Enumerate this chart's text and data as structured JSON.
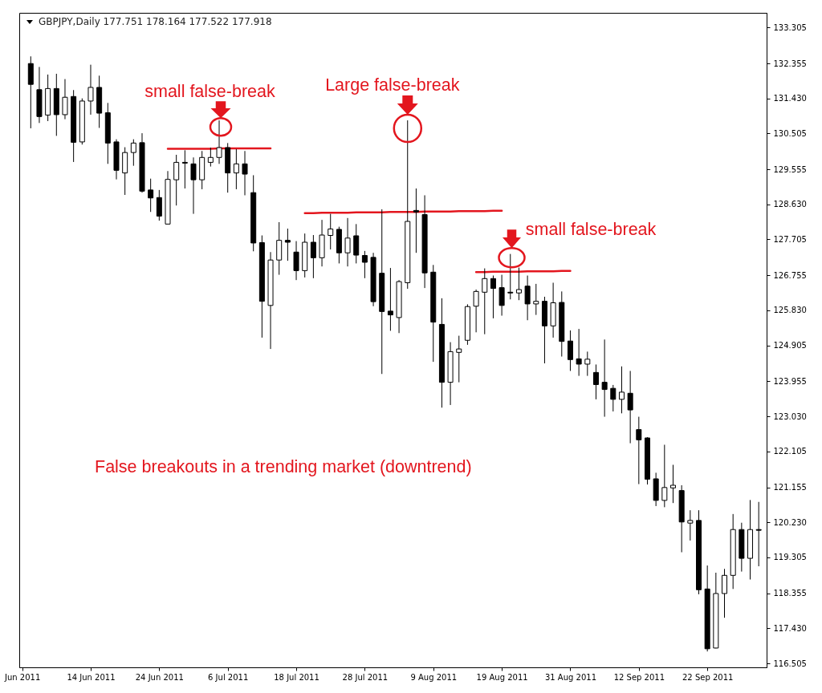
{
  "chart_data": {
    "type": "candlestick",
    "title": "GBPJPY,Daily 177.751 178.164 177.522 177.918",
    "categories": [
      "Jun 2011",
      null,
      null,
      null,
      null,
      null,
      null,
      null,
      "14 Jun 2011",
      null,
      null,
      null,
      null,
      null,
      null,
      null,
      "24 Jun 2011",
      null,
      null,
      null,
      null,
      null,
      null,
      null,
      "6 Jul 2011",
      null,
      null,
      null,
      null,
      null,
      null,
      null,
      "18 Jul 2011",
      null,
      null,
      null,
      null,
      null,
      null,
      null,
      "28 Jul 2011",
      null,
      null,
      null,
      null,
      null,
      null,
      null,
      "9 Aug 2011",
      null,
      null,
      null,
      null,
      null,
      null,
      null,
      "19 Aug 2011",
      null,
      null,
      null,
      null,
      null,
      null,
      null,
      "31 Aug 2011",
      null,
      null,
      null,
      null,
      null,
      null,
      null,
      "12 Sep 2011",
      null,
      null,
      null,
      null,
      null,
      null,
      null,
      "22 Sep 2011",
      null,
      null,
      null,
      null,
      null,
      null
    ],
    "ohlc": [
      null,
      [
        132.35,
        132.54,
        130.64,
        131.8
      ],
      [
        131.66,
        132.26,
        130.78,
        130.95
      ],
      [
        130.99,
        132.06,
        130.83,
        131.69
      ],
      [
        131.69,
        132.08,
        130.44,
        131.0
      ],
      [
        131.0,
        131.94,
        130.88,
        131.46
      ],
      [
        131.48,
        131.65,
        129.75,
        130.27
      ],
      [
        130.28,
        131.43,
        130.21,
        131.36
      ],
      [
        131.36,
        132.32,
        131.0,
        131.72
      ],
      [
        131.72,
        132.03,
        130.65,
        131.04
      ],
      [
        131.05,
        131.31,
        129.7,
        130.25
      ],
      [
        130.28,
        130.35,
        129.29,
        129.53
      ],
      [
        129.46,
        130.14,
        128.88,
        130.0
      ],
      [
        130.0,
        130.35,
        129.65,
        130.25
      ],
      [
        130.26,
        130.51,
        128.94,
        128.98
      ],
      [
        129.01,
        129.31,
        128.43,
        128.8
      ],
      [
        128.81,
        129.01,
        128.2,
        128.32
      ],
      [
        128.11,
        129.51,
        128.11,
        129.29
      ],
      [
        129.28,
        129.94,
        128.6,
        129.74
      ],
      [
        129.74,
        130.06,
        129.05,
        129.72
      ],
      [
        129.7,
        129.87,
        128.38,
        129.28
      ],
      [
        129.28,
        130.04,
        129.03,
        129.87
      ],
      [
        129.74,
        130.13,
        129.63,
        129.87
      ],
      [
        129.87,
        130.85,
        129.7,
        130.13
      ],
      [
        130.13,
        130.25,
        128.94,
        129.46
      ],
      [
        129.46,
        130.09,
        129.03,
        129.7
      ],
      [
        129.7,
        130.04,
        128.87,
        129.43
      ],
      [
        128.94,
        129.4,
        127.39,
        127.61
      ],
      [
        127.62,
        127.81,
        125.11,
        126.07
      ],
      [
        125.96,
        127.37,
        124.81,
        127.16
      ],
      [
        127.16,
        128.16,
        126.77,
        127.68
      ],
      [
        127.68,
        127.99,
        127.14,
        127.63
      ],
      [
        127.37,
        127.66,
        126.63,
        126.88
      ],
      [
        126.88,
        127.86,
        126.7,
        127.63
      ],
      [
        127.63,
        127.82,
        126.68,
        127.22
      ],
      [
        127.22,
        128.22,
        126.99,
        127.82
      ],
      [
        127.81,
        128.38,
        127.44,
        127.98
      ],
      [
        127.97,
        128.04,
        127.07,
        127.35
      ],
      [
        127.35,
        128.27,
        126.99,
        127.74
      ],
      [
        127.8,
        128.11,
        127.07,
        127.29
      ],
      [
        127.28,
        127.4,
        126.68,
        127.1
      ],
      [
        127.23,
        127.35,
        125.94,
        126.06
      ],
      [
        126.81,
        128.5,
        124.15,
        125.8
      ],
      [
        125.81,
        126.95,
        125.29,
        125.71
      ],
      [
        125.64,
        126.63,
        125.23,
        126.59
      ],
      [
        126.56,
        130.85,
        126.4,
        128.18
      ],
      [
        128.47,
        129.05,
        127.35,
        128.43
      ],
      [
        128.36,
        128.87,
        126.42,
        126.82
      ],
      [
        126.84,
        127.03,
        124.47,
        125.52
      ],
      [
        125.46,
        126.15,
        123.26,
        123.93
      ],
      [
        123.93,
        124.99,
        123.33,
        124.74
      ],
      [
        124.72,
        125.16,
        123.93,
        124.81
      ],
      [
        125.04,
        125.99,
        124.92,
        125.93
      ],
      [
        125.94,
        126.38,
        125.25,
        126.33
      ],
      [
        126.31,
        126.94,
        125.2,
        126.67
      ],
      [
        126.67,
        126.75,
        125.62,
        126.41
      ],
      [
        126.43,
        126.77,
        125.69,
        125.96
      ],
      [
        126.31,
        127.32,
        126.12,
        126.29
      ],
      [
        126.29,
        126.96,
        126.1,
        126.38
      ],
      [
        126.47,
        126.75,
        125.57,
        126.0
      ],
      [
        126.0,
        126.53,
        125.71,
        126.07
      ],
      [
        126.07,
        126.19,
        124.43,
        125.42
      ],
      [
        125.42,
        126.56,
        125.11,
        126.03
      ],
      [
        126.04,
        126.33,
        124.61,
        125.01
      ],
      [
        125.02,
        125.3,
        124.23,
        124.53
      ],
      [
        124.55,
        125.34,
        124.1,
        124.41
      ],
      [
        124.41,
        124.74,
        124.1,
        124.54
      ],
      [
        124.19,
        124.4,
        123.48,
        123.87
      ],
      [
        123.93,
        125.06,
        123.02,
        123.74
      ],
      [
        123.77,
        123.86,
        123.16,
        123.48
      ],
      [
        123.48,
        124.35,
        123.11,
        123.67
      ],
      [
        123.64,
        124.23,
        122.32,
        123.2
      ],
      [
        122.68,
        123.02,
        121.24,
        122.41
      ],
      [
        122.46,
        122.48,
        121.23,
        121.37
      ],
      [
        121.38,
        121.54,
        120.66,
        120.81
      ],
      [
        120.81,
        122.28,
        120.63,
        121.15
      ],
      [
        121.14,
        121.75,
        120.74,
        121.21
      ],
      [
        121.07,
        121.21,
        119.44,
        120.24
      ],
      [
        120.21,
        120.55,
        119.75,
        120.28
      ],
      [
        120.28,
        120.55,
        118.33,
        118.45
      ],
      [
        118.47,
        119.09,
        116.82,
        116.89
      ],
      [
        116.91,
        118.9,
        116.9,
        118.35
      ],
      [
        118.35,
        119.0,
        117.71,
        118.83
      ],
      [
        118.83,
        120.45,
        118.47,
        120.04
      ],
      [
        120.04,
        120.22,
        118.93,
        119.28
      ],
      [
        119.28,
        120.82,
        118.72,
        120.04
      ],
      [
        120.04,
        120.77,
        119.07,
        120.02
      ]
    ],
    "ylim": [
      116.4,
      133.69
    ],
    "yticks": [
      133.305,
      132.355,
      {
        "value": 131.43,
        "label": "131.430"
      },
      130.505,
      129.555,
      {
        "value": 128.63,
        "label": "128.630"
      },
      127.705,
      126.755,
      {
        "value": 125.83,
        "label": "125.830"
      },
      124.905,
      123.955,
      {
        "value": 123.03,
        "label": "123.030"
      },
      122.105,
      121.155,
      {
        "value": 120.23,
        "label": "120.230"
      },
      119.305,
      118.355,
      {
        "value": 117.43,
        "label": "117.430"
      },
      116.505
    ],
    "series": [
      {
        "type": "line",
        "color": "#e3161e",
        "values": [
          null,
          null,
          null,
          null,
          null,
          null,
          null,
          null,
          null,
          null,
          null,
          null,
          null,
          null,
          null,
          null,
          null,
          130.1,
          130.1,
          130.1,
          130.1,
          130.1,
          130.1,
          130.11,
          130.11,
          130.11,
          130.11,
          130.11,
          130.11,
          130.11,
          null,
          null,
          null,
          null,
          null,
          null,
          null,
          null,
          null,
          null,
          null,
          null,
          null,
          null,
          null,
          null,
          null,
          null,
          null,
          null,
          null,
          null,
          null,
          null,
          null,
          null,
          null,
          null,
          null,
          null,
          null,
          null,
          null,
          null,
          null,
          null,
          null,
          null,
          null,
          null,
          null,
          null,
          null,
          null,
          null,
          null,
          null,
          null,
          null,
          null,
          null,
          null,
          null,
          null,
          null,
          null,
          null
        ]
      },
      {
        "type": "line",
        "color": "#e3161e",
        "values": [
          null,
          null,
          null,
          null,
          null,
          null,
          null,
          null,
          null,
          null,
          null,
          null,
          null,
          null,
          null,
          null,
          null,
          null,
          null,
          null,
          null,
          null,
          null,
          null,
          null,
          null,
          null,
          null,
          null,
          null,
          null,
          null,
          null,
          128.4,
          128.4,
          128.41,
          128.41,
          128.41,
          128.41,
          128.42,
          128.42,
          128.42,
          128.42,
          128.43,
          128.43,
          128.43,
          128.43,
          128.44,
          128.44,
          128.44,
          128.44,
          128.45,
          128.45,
          128.45,
          128.45,
          128.46,
          128.46,
          null,
          null,
          null,
          null,
          null,
          null,
          null,
          null,
          null,
          null,
          null,
          null,
          null,
          null,
          null,
          null,
          null,
          null,
          null,
          null,
          null,
          null,
          null,
          null,
          null,
          null,
          null,
          null,
          null,
          null
        ]
      },
      {
        "type": "line",
        "color": "#e3161e",
        "values": [
          null,
          null,
          null,
          null,
          null,
          null,
          null,
          null,
          null,
          null,
          null,
          null,
          null,
          null,
          null,
          null,
          null,
          null,
          null,
          null,
          null,
          null,
          null,
          null,
          null,
          null,
          null,
          null,
          null,
          null,
          null,
          null,
          null,
          null,
          null,
          null,
          null,
          null,
          null,
          null,
          null,
          null,
          null,
          null,
          null,
          null,
          null,
          null,
          null,
          null,
          null,
          null,
          null,
          126.84,
          126.84,
          126.85,
          126.85,
          126.85,
          126.85,
          126.86,
          126.86,
          126.86,
          126.86,
          126.87,
          126.87,
          null,
          null,
          null,
          null,
          null,
          null,
          null,
          null,
          null,
          null,
          null,
          null,
          null,
          null,
          null,
          null,
          null,
          null,
          null,
          null,
          null,
          null
        ]
      }
    ],
    "annotations": [
      "small false-break",
      "Large false-break",
      "small false-break",
      "False breakouts in a trending market (downtrend)"
    ]
  }
}
